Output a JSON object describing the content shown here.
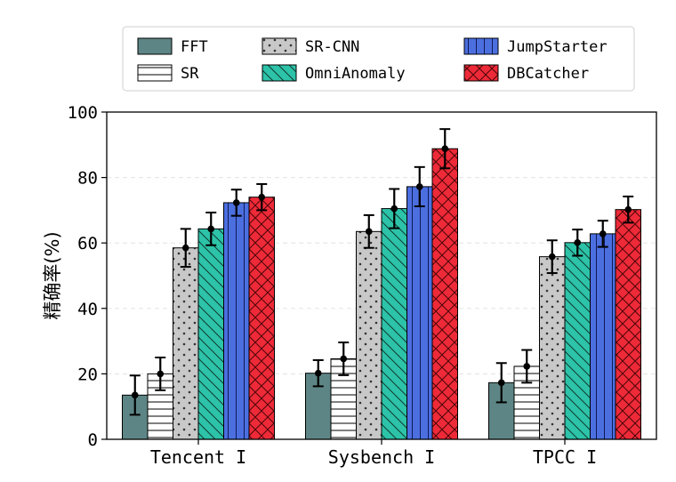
{
  "chart_data": {
    "type": "bar",
    "categories": [
      "Tencent I",
      "Sysbench I",
      "TPCC I"
    ],
    "ylabel": "精确率(%)",
    "xlabel": "",
    "ylim": [
      0,
      100
    ],
    "yticks": [
      0,
      20,
      40,
      60,
      80,
      100
    ],
    "grid": true,
    "legend_position": "top",
    "series": [
      {
        "name": "FFT",
        "values": [
          13.5,
          20.2,
          17.3
        ],
        "errors": [
          6.0,
          4.0,
          6.0
        ],
        "color": "#5e8585",
        "hatch": "none"
      },
      {
        "name": "SR",
        "values": [
          20.0,
          24.6,
          22.3
        ],
        "errors": [
          5.0,
          5.0,
          5.0
        ],
        "color": "#ffffff",
        "hatch": "horizontal"
      },
      {
        "name": "SR-CNN",
        "values": [
          58.5,
          63.5,
          55.8
        ],
        "errors": [
          5.8,
          5.0,
          5.0
        ],
        "color": "#c8c8c8",
        "hatch": "dots"
      },
      {
        "name": "OmniAnomaly",
        "values": [
          64.3,
          70.5,
          60.1
        ],
        "errors": [
          5.0,
          6.0,
          4.0
        ],
        "color": "#2dc3a8",
        "hatch": "diagonal"
      },
      {
        "name": "JumpStarter",
        "values": [
          72.3,
          77.2,
          62.8
        ],
        "errors": [
          4.0,
          6.0,
          4.0
        ],
        "color": "#4c6fe0",
        "hatch": "vertical"
      },
      {
        "name": "DBCatcher",
        "values": [
          74.0,
          88.8,
          70.2
        ],
        "errors": [
          4.0,
          6.0,
          4.0
        ],
        "color": "#ee2a38",
        "hatch": "cross"
      }
    ]
  }
}
